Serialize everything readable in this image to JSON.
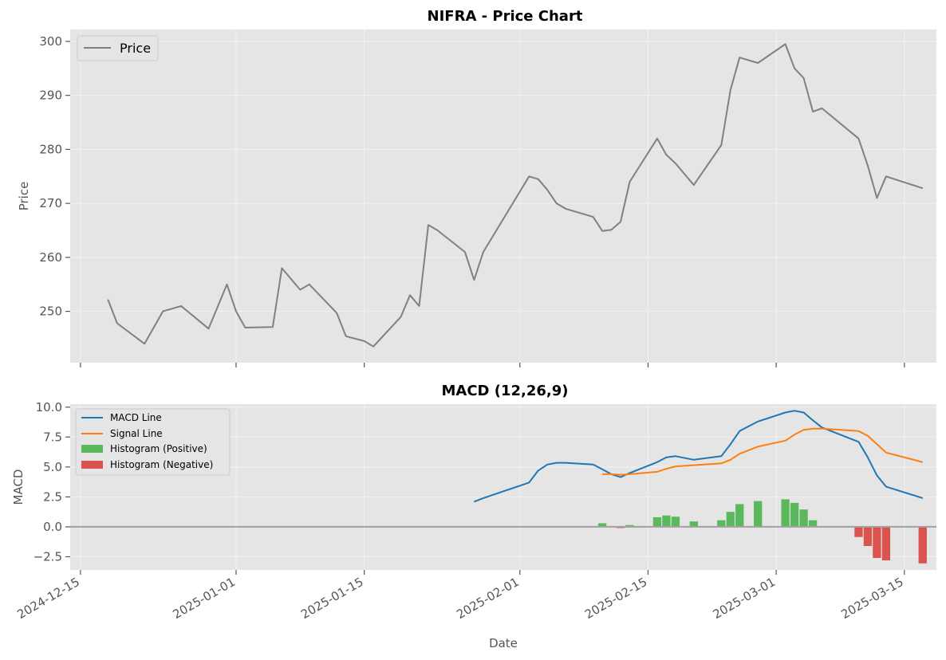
{
  "chart_data": [
    {
      "type": "line",
      "title": "NIFRA - Price Chart",
      "ylabel": "Price",
      "xlabel": "",
      "ylim": [
        240.5,
        302.2
      ],
      "yticks": [
        250,
        260,
        270,
        280,
        290,
        300
      ],
      "grid": true,
      "legend": {
        "placement": "top-left",
        "entries": [
          "Price"
        ]
      },
      "series": [
        {
          "name": "Price",
          "color": "#808080",
          "points": [
            [
              "2024-12-18",
              252.2
            ],
            [
              "2024-12-19",
              247.8
            ],
            [
              "2024-12-22",
              244.0
            ],
            [
              "2024-12-24",
              250.0
            ],
            [
              "2024-12-26",
              251.0
            ],
            [
              "2024-12-29",
              246.8
            ],
            [
              "2024-12-31",
              255.0
            ],
            [
              "2025-01-01",
              250.0
            ],
            [
              "2025-01-02",
              247.0
            ],
            [
              "2025-01-05",
              247.1
            ],
            [
              "2025-01-06",
              258.0
            ],
            [
              "2025-01-08",
              254.0
            ],
            [
              "2025-01-09",
              255.0
            ],
            [
              "2025-01-12",
              249.7
            ],
            [
              "2025-01-13",
              245.4
            ],
            [
              "2025-01-15",
              244.5
            ],
            [
              "2025-01-16",
              243.5
            ],
            [
              "2025-01-19",
              249.0
            ],
            [
              "2025-01-20",
              253.0
            ],
            [
              "2025-01-21",
              251.0
            ],
            [
              "2025-01-22",
              266.0
            ],
            [
              "2025-01-23",
              265.0
            ],
            [
              "2025-01-26",
              261.0
            ],
            [
              "2025-01-27",
              255.8
            ],
            [
              "2025-01-28",
              261.0
            ],
            [
              "2025-02-02",
              275.0
            ],
            [
              "2025-02-03",
              274.5
            ],
            [
              "2025-02-04",
              272.5
            ],
            [
              "2025-02-05",
              270.0
            ],
            [
              "2025-02-06",
              269.0
            ],
            [
              "2025-02-09",
              267.5
            ],
            [
              "2025-02-10",
              264.9
            ],
            [
              "2025-02-11",
              265.1
            ],
            [
              "2025-02-12",
              266.6
            ],
            [
              "2025-02-13",
              274.0
            ],
            [
              "2025-02-16",
              282.0
            ],
            [
              "2025-02-17",
              279.0
            ],
            [
              "2025-02-18",
              277.4
            ],
            [
              "2025-02-20",
              273.4
            ],
            [
              "2025-02-23",
              280.8
            ],
            [
              "2025-02-24",
              291.0
            ],
            [
              "2025-02-25",
              297.0
            ],
            [
              "2025-02-27",
              296.0
            ],
            [
              "2025-03-02",
              299.5
            ],
            [
              "2025-03-03",
              295.0
            ],
            [
              "2025-03-04",
              293.2
            ],
            [
              "2025-03-05",
              287.0
            ],
            [
              "2025-03-06",
              287.6
            ],
            [
              "2025-03-10",
              282.0
            ],
            [
              "2025-03-11",
              277.0
            ],
            [
              "2025-03-12",
              271.0
            ],
            [
              "2025-03-13",
              275.0
            ],
            [
              "2025-03-17",
              272.8
            ]
          ]
        }
      ]
    },
    {
      "type": "line",
      "title": "MACD (12,26,9)",
      "ylabel": "MACD",
      "xlabel": "Date",
      "ylim": [
        -3.6,
        10.25
      ],
      "yticks": [
        -2.5,
        0.0,
        2.5,
        5.0,
        7.5,
        10.0
      ],
      "ytick_labels": [
        "−2.5",
        "0.0",
        "2.5",
        "5.0",
        "7.5",
        "10.0"
      ],
      "xticks": [
        "2024-12-15",
        "2025-01-01",
        "2025-01-15",
        "2025-02-01",
        "2025-02-15",
        "2025-03-01",
        "2025-03-15"
      ],
      "grid": true,
      "legend": {
        "placement": "top-left",
        "entries": [
          "MACD Line",
          "Signal Line",
          "Histogram (Positive)",
          "Histogram (Negative)"
        ]
      },
      "zero_line_color": "#a0a0a0",
      "series": [
        {
          "name": "MACD Line",
          "color": "#1f77b4",
          "points": [
            [
              "2025-01-27",
              2.1
            ],
            [
              "2025-01-28",
              2.4
            ],
            [
              "2025-02-02",
              3.7
            ],
            [
              "2025-02-03",
              4.7
            ],
            [
              "2025-02-04",
              5.2
            ],
            [
              "2025-02-05",
              5.35
            ],
            [
              "2025-02-06",
              5.35
            ],
            [
              "2025-02-09",
              5.2
            ],
            [
              "2025-02-10",
              4.8
            ],
            [
              "2025-02-11",
              4.4
            ],
            [
              "2025-02-12",
              4.15
            ],
            [
              "2025-02-13",
              4.5
            ],
            [
              "2025-02-16",
              5.4
            ],
            [
              "2025-02-17",
              5.8
            ],
            [
              "2025-02-18",
              5.9
            ],
            [
              "2025-02-20",
              5.6
            ],
            [
              "2025-02-23",
              5.9
            ],
            [
              "2025-02-24",
              6.9
            ],
            [
              "2025-02-25",
              8.0
            ],
            [
              "2025-02-27",
              8.8
            ],
            [
              "2025-03-02",
              9.55
            ],
            [
              "2025-03-03",
              9.7
            ],
            [
              "2025-03-04",
              9.55
            ],
            [
              "2025-03-05",
              8.9
            ],
            [
              "2025-03-06",
              8.3
            ],
            [
              "2025-03-10",
              7.1
            ],
            [
              "2025-03-11",
              5.8
            ],
            [
              "2025-03-12",
              4.3
            ],
            [
              "2025-03-13",
              3.35
            ],
            [
              "2025-03-17",
              2.4
            ]
          ]
        },
        {
          "name": "Signal Line",
          "color": "#ff7f0e",
          "points": [
            [
              "2025-02-10",
              4.4
            ],
            [
              "2025-02-11",
              4.4
            ],
            [
              "2025-02-12",
              4.35
            ],
            [
              "2025-02-13",
              4.4
            ],
            [
              "2025-02-16",
              4.6
            ],
            [
              "2025-02-17",
              4.85
            ],
            [
              "2025-02-18",
              5.05
            ],
            [
              "2025-02-20",
              5.15
            ],
            [
              "2025-02-23",
              5.3
            ],
            [
              "2025-02-24",
              5.6
            ],
            [
              "2025-02-25",
              6.1
            ],
            [
              "2025-02-27",
              6.7
            ],
            [
              "2025-03-02",
              7.2
            ],
            [
              "2025-03-03",
              7.7
            ],
            [
              "2025-03-04",
              8.1
            ],
            [
              "2025-03-05",
              8.2
            ],
            [
              "2025-03-06",
              8.2
            ],
            [
              "2025-03-10",
              8.0
            ],
            [
              "2025-03-11",
              7.6
            ],
            [
              "2025-03-13",
              6.2
            ],
            [
              "2025-03-17",
              5.4
            ]
          ]
        }
      ],
      "histogram": {
        "positive_color": "#5cb85c",
        "negative_color": "#d9534f",
        "positive_name": "Histogram (Positive)",
        "negative_name": "Histogram (Negative)",
        "bars": [
          [
            "2025-02-10",
            0.3
          ],
          [
            "2025-02-12",
            -0.1
          ],
          [
            "2025-02-13",
            0.15
          ],
          [
            "2025-02-16",
            0.8
          ],
          [
            "2025-02-17",
            0.95
          ],
          [
            "2025-02-18",
            0.85
          ],
          [
            "2025-02-20",
            0.45
          ],
          [
            "2025-02-23",
            0.55
          ],
          [
            "2025-02-24",
            1.25
          ],
          [
            "2025-02-25",
            1.9
          ],
          [
            "2025-02-27",
            2.15
          ],
          [
            "2025-03-02",
            2.3
          ],
          [
            "2025-03-03",
            2.0
          ],
          [
            "2025-03-04",
            1.45
          ],
          [
            "2025-03-05",
            0.55
          ],
          [
            "2025-03-10",
            -0.85
          ],
          [
            "2025-03-11",
            -1.6
          ],
          [
            "2025-03-12",
            -2.6
          ],
          [
            "2025-03-13",
            -2.8
          ],
          [
            "2025-03-17",
            -3.05
          ]
        ]
      }
    }
  ]
}
